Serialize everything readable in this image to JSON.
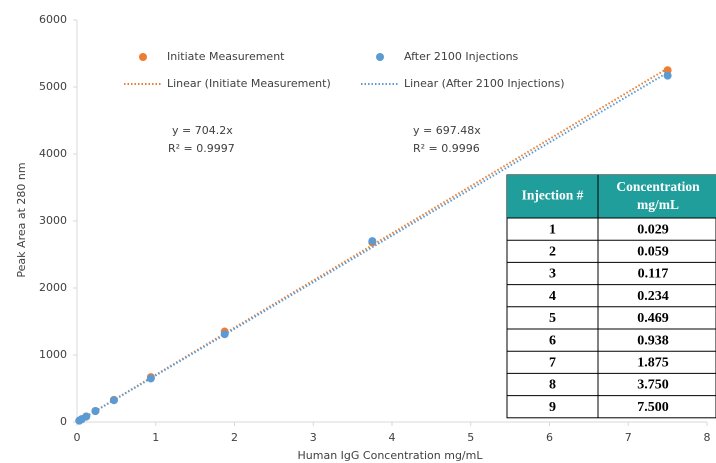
{
  "chart_data": {
    "type": "scatter",
    "x_label": "Human IgG Concentration mg/mL",
    "y_label": "Peak Area at 280 nm",
    "x": [
      0.029,
      0.059,
      0.117,
      0.234,
      0.469,
      0.938,
      1.875,
      3.75,
      7.5
    ],
    "series": [
      {
        "name": "Initiate Measurement",
        "color": "#ed7d31",
        "values": [
          20,
          42,
          83,
          165,
          330,
          670,
          1350,
          2680,
          5250
        ]
      },
      {
        "name": "After 2100 Injections",
        "color": "#5b9bd5",
        "values": [
          20,
          41,
          81,
          162,
          325,
          650,
          1310,
          2700,
          5170
        ]
      }
    ],
    "trendlines": [
      {
        "name": "Linear (Initiate Measurement)",
        "equation": "y = 704.2x",
        "r2": "R² = 0.9997"
      },
      {
        "name": "Linear (After 2100 Injections)",
        "equation": "y = 697.48x",
        "r2": "R² = 0.9996"
      }
    ],
    "xlim": [
      0,
      8
    ],
    "xticks": [
      0,
      1,
      2,
      3,
      4,
      5,
      6,
      7,
      8
    ],
    "ylim": [
      0,
      6000
    ],
    "yticks": [
      0,
      1000,
      2000,
      3000,
      4000,
      5000,
      6000
    ],
    "grid": false
  },
  "table": {
    "header": [
      "Injection #",
      [
        "Concentration",
        "mg/mL"
      ]
    ],
    "rows": [
      [
        "1",
        "0.029"
      ],
      [
        "2",
        "0.059"
      ],
      [
        "3",
        "0.117"
      ],
      [
        "4",
        "0.234"
      ],
      [
        "5",
        "0.469"
      ],
      [
        "6",
        "0.938"
      ],
      [
        "7",
        "1.875"
      ],
      [
        "8",
        "3.750"
      ],
      [
        "9",
        "7.500"
      ]
    ],
    "header_color": "#1f9e9c"
  }
}
